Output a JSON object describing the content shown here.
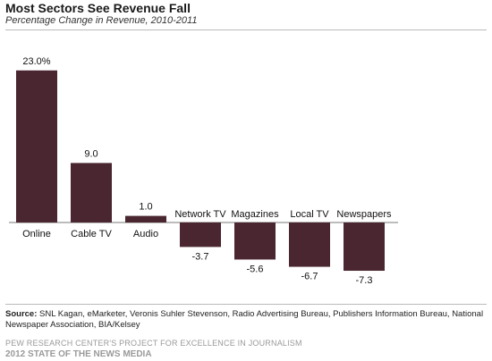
{
  "chart_data": {
    "type": "bar",
    "title": "Most Sectors See Revenue Fall",
    "subtitle": "Percentage Change in Revenue, 2010-2011",
    "categories": [
      "Online",
      "Cable TV",
      "Audio",
      "Network TV",
      "Magazines",
      "Local TV",
      "Newspapers"
    ],
    "values": [
      23.0,
      9.0,
      1.0,
      -3.7,
      -5.6,
      -6.7,
      -7.3
    ],
    "value_labels": [
      "23.0%",
      "9.0",
      "1.0",
      "-3.7",
      "-5.6",
      "-6.7",
      "-7.3"
    ],
    "bar_color": "#4a2630",
    "xlabel": "",
    "ylabel": "",
    "grid": false
  },
  "source": {
    "label": "Source:",
    "text": "SNL Kagan, eMarketer, Veronis Suhler Stevenson, Radio Advertising Bureau, Publishers Information Bureau, National Newspaper Association, BIA/Kelsey"
  },
  "footer": {
    "line1": "PEW RESEARCH CENTER'S PROJECT FOR EXCELLENCE IN JOURNALISM",
    "line2": "2012 STATE OF THE NEWS MEDIA"
  }
}
